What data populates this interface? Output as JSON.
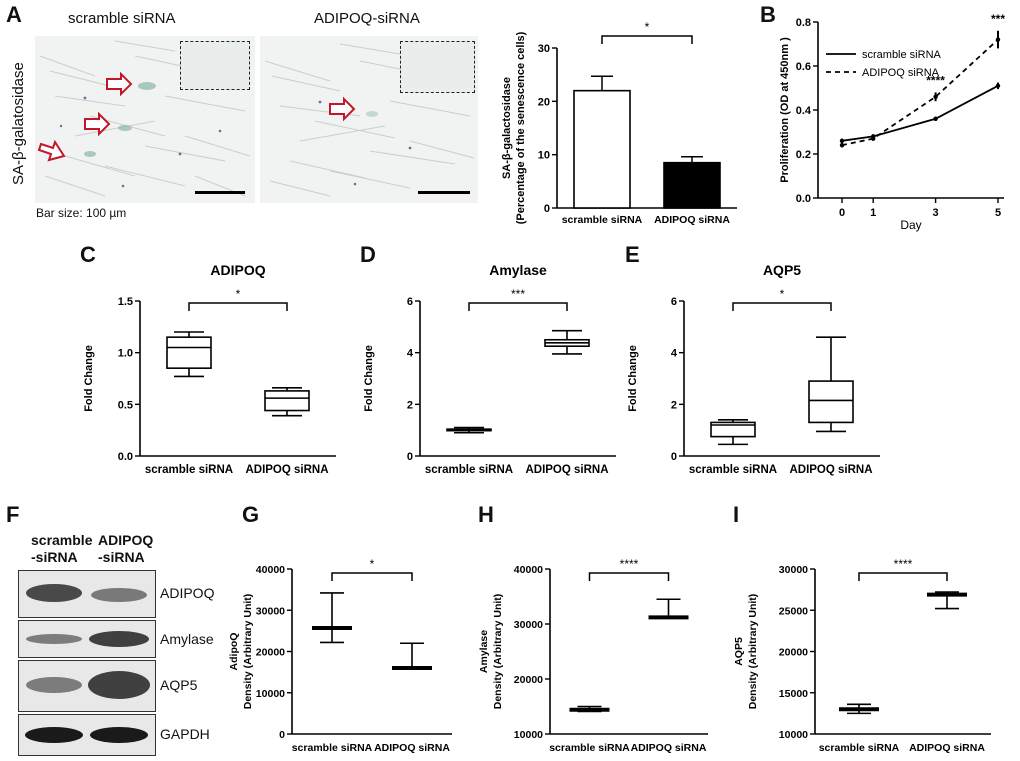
{
  "panels": {
    "A": "A",
    "B": "B",
    "C": "C",
    "D": "D",
    "E": "E",
    "F": "F",
    "G": "G",
    "H": "H",
    "I": "I"
  },
  "panel_a": {
    "image_titles": [
      "scramble siRNA",
      "ADIPOQ-siRNA"
    ],
    "side_label": "SA-β-galatosidase",
    "bar_size_note": "Bar size: 100 µm"
  },
  "blot": {
    "col_labels": [
      "scramble\n-siRNA",
      "ADIPOQ\n-siRNA"
    ],
    "bands": [
      "ADIPOQ",
      "Amylase",
      "AQP5",
      "GAPDH"
    ]
  },
  "chart_data": [
    {
      "id": "A-bar",
      "type": "bar",
      "categories": [
        "scramble siRNA",
        "ADIPOQ siRNA"
      ],
      "values": [
        22,
        8.5
      ],
      "errors": [
        2.7,
        1.1
      ],
      "fills": [
        "#ffffff",
        "#000000"
      ],
      "ylabel": "SA-β-galactosidase\n(Percentage of the senescence cells)",
      "ylim": [
        0,
        30
      ],
      "yticks": [
        0,
        10,
        20,
        30
      ],
      "significance": "*"
    },
    {
      "id": "B-line",
      "type": "line",
      "x": [
        0,
        1,
        3,
        5
      ],
      "xlabel": "Day",
      "ylabel": "Proliferation (OD at 450nm )",
      "ylim": [
        0,
        0.8
      ],
      "yticks": [
        0.0,
        0.2,
        0.4,
        0.6,
        0.8
      ],
      "series": [
        {
          "name": "scramble siRNA",
          "values": [
            0.26,
            0.28,
            0.36,
            0.51
          ],
          "errors": [
            0.01,
            0.01,
            0.01,
            0.015
          ],
          "dash": false
        },
        {
          "name": "ADIPOQ siRNA",
          "values": [
            0.24,
            0.27,
            0.46,
            0.72
          ],
          "errors": [
            0.01,
            0.01,
            0.02,
            0.04
          ],
          "dash": true
        }
      ],
      "annotations": [
        {
          "x": 3,
          "text": "****"
        },
        {
          "x": 5,
          "text": "***"
        }
      ]
    },
    {
      "id": "C-box",
      "type": "box",
      "title": "ADIPOQ",
      "categories": [
        "scramble siRNA",
        "ADIPOQ siRNA"
      ],
      "boxes": [
        {
          "min": 0.77,
          "q1": 0.85,
          "median": 1.05,
          "q3": 1.15,
          "max": 1.2
        },
        {
          "min": 0.39,
          "q1": 0.44,
          "median": 0.56,
          "q3": 0.63,
          "max": 0.66
        }
      ],
      "ylabel": "Fold Change",
      "ylim": [
        0,
        1.5
      ],
      "yticks": [
        0.0,
        0.5,
        1.0,
        1.5
      ],
      "tick_format": 1,
      "significance": "*"
    },
    {
      "id": "D-box",
      "type": "box",
      "title": "Amylase",
      "categories": [
        "scramble siRNA",
        "ADIPOQ siRNA"
      ],
      "boxes": [
        {
          "min": 0.9,
          "q1": 0.98,
          "median": 1.0,
          "q3": 1.04,
          "max": 1.1
        },
        {
          "min": 3.95,
          "q1": 4.25,
          "median": 4.38,
          "q3": 4.5,
          "max": 4.85
        }
      ],
      "ylabel": "Fold Change",
      "ylim": [
        0,
        6
      ],
      "yticks": [
        0,
        2,
        4,
        6
      ],
      "tick_format": 0,
      "significance": "***"
    },
    {
      "id": "E-box",
      "type": "box",
      "title": "AQP5",
      "categories": [
        "scramble siRNA",
        "ADIPOQ siRNA"
      ],
      "boxes": [
        {
          "min": 0.45,
          "q1": 0.75,
          "median": 1.2,
          "q3": 1.3,
          "max": 1.4
        },
        {
          "min": 0.95,
          "q1": 1.3,
          "median": 2.15,
          "q3": 2.9,
          "max": 4.6
        }
      ],
      "ylabel": "Fold Change",
      "ylim": [
        0,
        6
      ],
      "yticks": [
        0,
        2,
        4,
        6
      ],
      "tick_format": 0,
      "significance": "*"
    },
    {
      "id": "G-mean",
      "type": "scatter",
      "categories": [
        "scramble siRNA",
        "ADIPOQ siRNA"
      ],
      "means": [
        25700,
        16000
      ],
      "lows": [
        22200,
        16000
      ],
      "highs": [
        34200,
        22000
      ],
      "ylabel": "AdipoQ\nDensity (Arbitrary Unit)",
      "ylim": [
        0,
        40000
      ],
      "yticks": [
        0,
        10000,
        20000,
        30000,
        40000
      ],
      "significance": "*"
    },
    {
      "id": "H-mean",
      "type": "scatter",
      "categories": [
        "scramble siRNA",
        "ADIPOQ siRNA"
      ],
      "means": [
        14400,
        31200
      ],
      "lows": [
        14100,
        31200
      ],
      "highs": [
        15000,
        34500
      ],
      "ylabel": "Amylase\nDensity (Arbitrary  Unit)",
      "ylim": [
        10000,
        40000
      ],
      "yticks": [
        10000,
        20000,
        30000,
        40000
      ],
      "significance": "****"
    },
    {
      "id": "I-mean",
      "type": "scatter",
      "categories": [
        "scramble siRNA",
        "ADIPOQ siRNA"
      ],
      "means": [
        13000,
        26900
      ],
      "lows": [
        12500,
        25200
      ],
      "highs": [
        13600,
        27200
      ],
      "ylabel": "AQP5\nDensity (Arbitrary Unit)",
      "ylim": [
        10000,
        30000
      ],
      "yticks": [
        10000,
        15000,
        20000,
        25000,
        30000
      ],
      "significance": "****"
    }
  ]
}
